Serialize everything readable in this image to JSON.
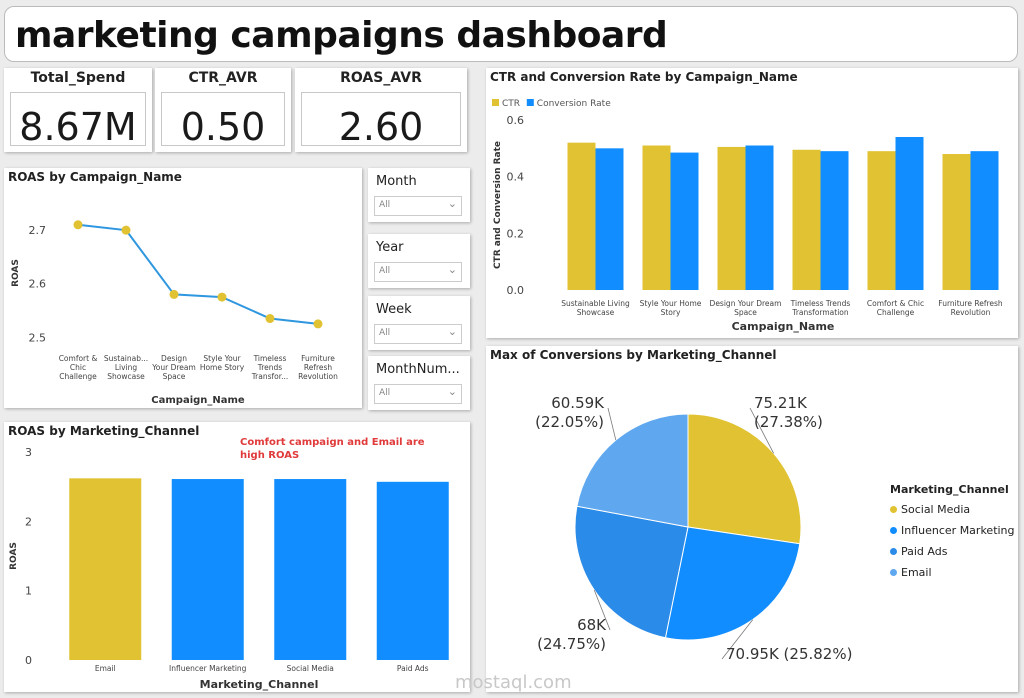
{
  "header": {
    "title": "marketing campaigns dashboard"
  },
  "kpis": [
    {
      "label": "Total_Spend",
      "value": "8.67M"
    },
    {
      "label": "CTR_AVR",
      "value": "0.50"
    },
    {
      "label": "ROAS_AVR",
      "value": "2.60"
    }
  ],
  "slicers": [
    {
      "label": "Month",
      "value": "All"
    },
    {
      "label": "Year",
      "value": "All"
    },
    {
      "label": "Week",
      "value": "All"
    },
    {
      "label": "MonthNum...",
      "value": "All"
    }
  ],
  "colors": {
    "yellow": "#e0c232",
    "blue": "#118dff",
    "mid_blue": "#2b8be8",
    "light_blue": "#5fa8f0",
    "line": "#2e97e0"
  },
  "roas_campaign": {
    "title": "ROAS by Campaign_Name",
    "chart_data": {
      "type": "line",
      "title": "ROAS by Campaign_Name",
      "xlabel": "Campaign_Name",
      "ylabel": "ROAS",
      "categories": [
        "Comfort & Chic Challenge",
        "Sustainab... Living Showcase",
        "Design Your Dream Space",
        "Style Your Home Story",
        "Timeless Trends Transfor...",
        "Furniture Refresh Revolution"
      ],
      "values": [
        2.71,
        2.7,
        2.58,
        2.575,
        2.535,
        2.525
      ],
      "ylim": [
        2.48,
        2.76
      ],
      "yticks": [
        "2.5",
        "2.6",
        "2.7"
      ]
    }
  },
  "ctr_conv": {
    "title": "CTR and Conversion Rate by Campaign_Name",
    "chart_data": {
      "type": "bar",
      "title": "CTR and Conversion Rate by Campaign_Name",
      "xlabel": "Campaign_Name",
      "ylabel": "CTR and Conversion Rate",
      "categories": [
        "Sustainable Living Showcase",
        "Style Your Home Story",
        "Design Your Dream Space",
        "Timeless Trends Transformation",
        "Comfort & Chic Challenge",
        "Furniture Refresh Revolution"
      ],
      "series": [
        {
          "name": "CTR",
          "values": [
            0.52,
            0.51,
            0.505,
            0.495,
            0.49,
            0.48
          ]
        },
        {
          "name": "Conversion Rate",
          "values": [
            0.5,
            0.485,
            0.51,
            0.49,
            0.54,
            0.49
          ]
        }
      ],
      "ylim": [
        0,
        0.6
      ],
      "yticks": [
        "0.0",
        "0.2",
        "0.4",
        "0.6"
      ]
    }
  },
  "roas_channel": {
    "title": "ROAS by Marketing_Channel",
    "annotation": "Comfort campaign and Email are high ROAS",
    "chart_data": {
      "type": "bar",
      "title": "ROAS by Marketing_Channel",
      "xlabel": "Marketing_Channel",
      "ylabel": "ROAS",
      "categories": [
        "Email",
        "Influencer Marketing",
        "Social Media",
        "Paid Ads"
      ],
      "values": [
        2.62,
        2.61,
        2.61,
        2.57
      ],
      "ylim": [
        0,
        3
      ],
      "yticks": [
        "0",
        "1",
        "2",
        "3"
      ]
    }
  },
  "conversions": {
    "title": "Max of Conversions by Marketing_Channel",
    "legend_title": "Marketing_Channel",
    "chart_data": {
      "type": "pie",
      "title": "Max of Conversions by Marketing_Channel",
      "categories": [
        "Social Media",
        "Influencer Marketing",
        "Paid Ads",
        "Email"
      ],
      "values": [
        75.21,
        70.95,
        68,
        60.59
      ],
      "labels": [
        "75.21K (27.38%)",
        "70.95K (25.82%)",
        "68K (24.75%)",
        "60.59K (22.05%)"
      ]
    }
  },
  "watermark": "mostaql.com"
}
